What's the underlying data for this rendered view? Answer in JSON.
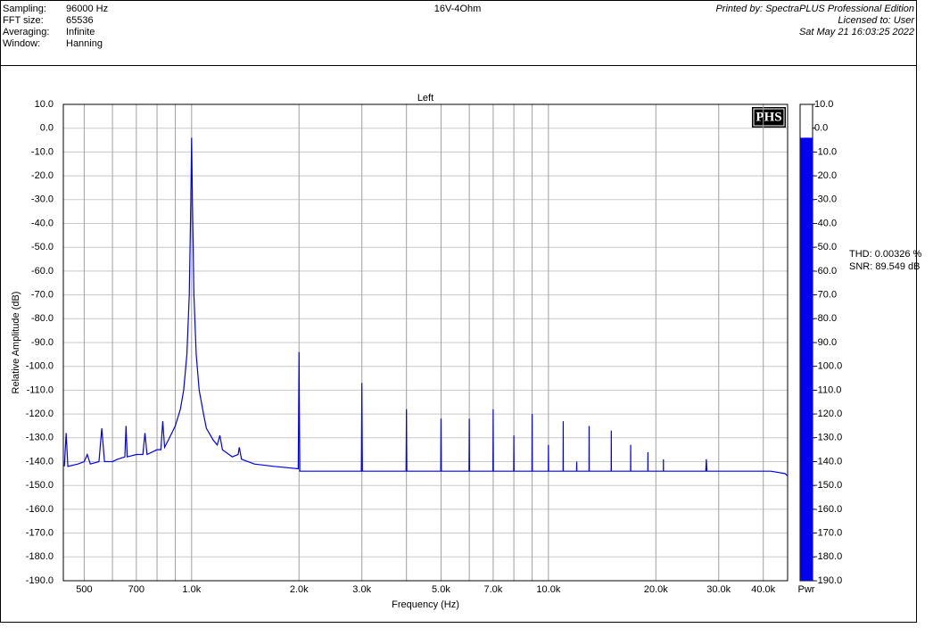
{
  "header": {
    "fields": [
      {
        "label": "Sampling:",
        "value": "96000 Hz"
      },
      {
        "label": "FFT size:",
        "value": "65536"
      },
      {
        "label": "Averaging:",
        "value": "Infinite"
      },
      {
        "label": "Window:",
        "value": "Hanning"
      }
    ],
    "center": "16V-4Ohm",
    "right": [
      "Printed by: SpectraPLUS Professional Edition",
      "Licensed to: User",
      "Sat May 21 16:03:25 2022"
    ]
  },
  "chart_data": {
    "type": "line",
    "title": "Left",
    "x_label": "Frequency (Hz)",
    "y_label": "Relative Amplitude (dB)",
    "logo": "PHS",
    "colorbar_label": "Pwr",
    "log_x": true,
    "grid": true,
    "color": "#0000ee",
    "annotations": [
      "THD: 0.00326 %",
      "SNR: 89.549 dB"
    ],
    "xlim": [
      437,
      46800
    ],
    "ylim": [
      -190,
      10
    ],
    "xticks": [
      {
        "value": 500,
        "label": "500"
      },
      {
        "value": 700,
        "label": "700"
      },
      {
        "value": 1000,
        "label": "1.0k"
      },
      {
        "value": 2000,
        "label": "2.0k"
      },
      {
        "value": 3000,
        "label": "3.0k"
      },
      {
        "value": 5000,
        "label": "5.0k"
      },
      {
        "value": 7000,
        "label": "7.0k"
      },
      {
        "value": 10000,
        "label": "10.0k"
      },
      {
        "value": 20000,
        "label": "20.0k"
      },
      {
        "value": 30000,
        "label": "30.0k"
      },
      {
        "value": 40000,
        "label": "40.0k"
      }
    ],
    "xminor": [
      600,
      800,
      900,
      4000,
      6000,
      8000,
      9000
    ],
    "yticks": [
      {
        "value": 10,
        "label": "10.0"
      },
      {
        "value": 0,
        "label": "0.0"
      },
      {
        "value": -10,
        "label": "-10.0"
      },
      {
        "value": -20,
        "label": "-20.0"
      },
      {
        "value": -30,
        "label": "-30.0"
      },
      {
        "value": -40,
        "label": "-40.0"
      },
      {
        "value": -50,
        "label": "-50.0"
      },
      {
        "value": -60,
        "label": "-60.0"
      },
      {
        "value": -70,
        "label": "-70.0"
      },
      {
        "value": -80,
        "label": "-80.0"
      },
      {
        "value": -90,
        "label": "-90.0"
      },
      {
        "value": -100,
        "label": "-100.0"
      },
      {
        "value": -110,
        "label": "-110.0"
      },
      {
        "value": -120,
        "label": "-120.0"
      },
      {
        "value": -130,
        "label": "-130.0"
      },
      {
        "value": -140,
        "label": "-140.0"
      },
      {
        "value": -150,
        "label": "-150.0"
      },
      {
        "value": -160,
        "label": "-160.0"
      },
      {
        "value": -170,
        "label": "-170.0"
      },
      {
        "value": -180,
        "label": "-180.0"
      },
      {
        "value": -190,
        "label": "-190.0"
      }
    ],
    "x": [
      440,
      445,
      450,
      480,
      500,
      510,
      520,
      550,
      560,
      570,
      600,
      620,
      650,
      655,
      660,
      700,
      730,
      740,
      750,
      800,
      820,
      830,
      840,
      860,
      880,
      900,
      930,
      950,
      970,
      985,
      995,
      1000,
      1005,
      1015,
      1030,
      1050,
      1080,
      1100,
      1150,
      1180,
      1200,
      1220,
      1300,
      1350,
      1360,
      1380,
      1500,
      1700,
      1990,
      2000,
      2010,
      2500,
      2990,
      3000,
      3010,
      3500,
      3990,
      4000,
      4010,
      4990,
      5000,
      5010,
      5990,
      6000,
      6010,
      6990,
      7000,
      7010,
      7990,
      8000,
      8010,
      8990,
      9000,
      9010,
      9990,
      10000,
      10010,
      10990,
      11000,
      11010,
      11990,
      12000,
      12010,
      12990,
      13000,
      13010,
      14990,
      15000,
      15010,
      16990,
      17000,
      17010,
      18990,
      19000,
      19010,
      20990,
      21000,
      21010,
      27600,
      27700,
      27800,
      35000,
      42000,
      46000,
      46800
    ],
    "values": [
      -142,
      -128,
      -142,
      -141,
      -140,
      -137,
      -141,
      -140,
      -126,
      -140,
      -140,
      -139,
      -138,
      -125,
      -138,
      -137,
      -137,
      -128,
      -137,
      -135,
      -135,
      -123,
      -134,
      -131,
      -128,
      -125,
      -118,
      -110,
      -95,
      -70,
      -30,
      -4,
      -30,
      -70,
      -95,
      -110,
      -120,
      -126,
      -131,
      -133,
      -129,
      -135,
      -138,
      -137,
      -134,
      -139,
      -141,
      -142,
      -143,
      -94,
      -144,
      -144,
      -144,
      -107,
      -144,
      -144,
      -144,
      -118,
      -144,
      -144,
      -122,
      -144,
      -144,
      -122,
      -144,
      -144,
      -118,
      -144,
      -144,
      -129,
      -144,
      -144,
      -120,
      -144,
      -144,
      -133,
      -144,
      -144,
      -123,
      -144,
      -144,
      -140,
      -144,
      -144,
      -125,
      -144,
      -144,
      -127,
      -144,
      -144,
      -133,
      -144,
      -144,
      -136,
      -144,
      -144,
      -139,
      -144,
      -144,
      -139,
      -144,
      -144,
      -144,
      -145,
      -146
    ]
  }
}
